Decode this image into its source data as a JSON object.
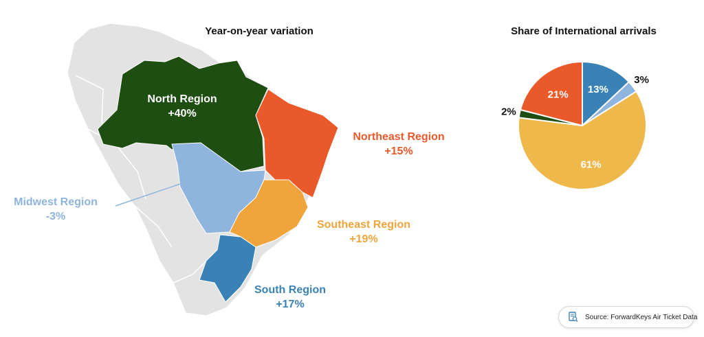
{
  "map": {
    "title": "Year-on-year variation",
    "regions": [
      {
        "key": "north",
        "name": "North Region",
        "value": "+40%",
        "color": "#1f4e12"
      },
      {
        "key": "northeast",
        "name": "Northeast Region",
        "value": "+15%",
        "color": "#e9592a"
      },
      {
        "key": "midwest",
        "name": "Midwest Region",
        "value": "-3%",
        "color": "#8fb4de"
      },
      {
        "key": "southeast",
        "name": "Southeast Region",
        "value": "+19%",
        "color": "#f0a43c"
      },
      {
        "key": "south",
        "name": "South Region",
        "value": "+17%",
        "color": "#3a82b5"
      }
    ]
  },
  "chart_data": {
    "type": "pie",
    "title": "Share of International arrivals",
    "slices": [
      {
        "label": "13%",
        "value": 13,
        "color": "#3a82b5"
      },
      {
        "label": "3%",
        "value": 3,
        "color": "#8fb4de"
      },
      {
        "label": "61%",
        "value": 61,
        "color": "#eeb84a"
      },
      {
        "label": "2%",
        "value": 2,
        "color": "#1f4e12"
      },
      {
        "label": "21%",
        "value": 21,
        "color": "#e9592a"
      }
    ]
  },
  "source": {
    "text": "Source: ForwardKeys Air Ticket Data",
    "icon": "search-document-icon"
  }
}
